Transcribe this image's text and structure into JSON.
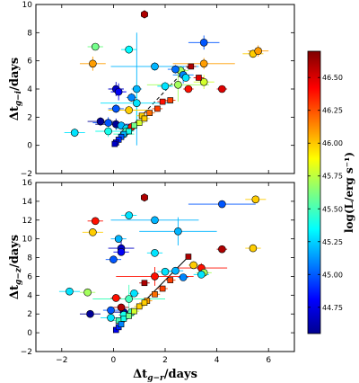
{
  "chart_data": {
    "type": "scatter",
    "shared_xlabel": {
      "main": "Δt",
      "sub": "g−r",
      "rest": "/days"
    },
    "xlim": [
      -3,
      7
    ],
    "xticks": [
      -2,
      0,
      2,
      4,
      6
    ],
    "colorbar": {
      "label": "log(L/erg s⁻¹)",
      "range": [
        44.55,
        46.7
      ],
      "ticks": [
        44.75,
        45.0,
        45.25,
        45.5,
        45.75,
        46.0,
        46.25,
        46.5
      ],
      "tick_labels": [
        "44.75",
        "45.00",
        "45.25",
        "45.50",
        "45.75",
        "46.00",
        "46.25",
        "46.50"
      ],
      "colormap": "jet"
    },
    "panels": [
      {
        "name": "top",
        "ylabel": {
          "main": "Δt",
          "sub": "g−i",
          "rest": "/days"
        },
        "ylim": [
          -2,
          10
        ],
        "yticks": [
          -2,
          0,
          2,
          4,
          6,
          8,
          10
        ],
        "line": {
          "x": [
            0,
            2.9
          ],
          "y": [
            0,
            5.6
          ],
          "style": "dashed"
        },
        "series": [
          {
            "x": 1.2,
            "y": 9.3,
            "xerr": 0,
            "yerr": 0,
            "c": 46.6,
            "m": "h"
          },
          {
            "x": -0.7,
            "y": 7.0,
            "xerr": 0.3,
            "yerr": 0.2,
            "c": 45.6,
            "m": "o"
          },
          {
            "x": 0.6,
            "y": 6.8,
            "xerr": 0.3,
            "yerr": 0.3,
            "c": 45.35,
            "m": "o"
          },
          {
            "x": 3.5,
            "y": 7.3,
            "xerr": 0.6,
            "yerr": 0.5,
            "c": 45.0,
            "m": "o"
          },
          {
            "x": -0.8,
            "y": 5.8,
            "xerr": 0.5,
            "yerr": 0.5,
            "c": 46.1,
            "m": "o"
          },
          {
            "x": 1.6,
            "y": 5.6,
            "xerr": 1.7,
            "yerr": 0.3,
            "c": 45.2,
            "m": "o"
          },
          {
            "x": 2.6,
            "y": 5.3,
            "xerr": 0.3,
            "yerr": 0.3,
            "c": 45.7,
            "m": "o"
          },
          {
            "x": 2.7,
            "y": 5.0,
            "xerr": 0.4,
            "yerr": 0.6,
            "c": 45.1,
            "m": "o"
          },
          {
            "x": 2.4,
            "y": 5.4,
            "xerr": 0.3,
            "yerr": 0.3,
            "c": 45.05,
            "m": "o"
          },
          {
            "x": 3.0,
            "y": 5.6,
            "xerr": 0.2,
            "yerr": 0.2,
            "c": 46.6,
            "m": "s"
          },
          {
            "x": 2.8,
            "y": 4.8,
            "xerr": 0.2,
            "yerr": 0.2,
            "c": 45.3,
            "m": "o"
          },
          {
            "x": 3.5,
            "y": 5.8,
            "xerr": 1.2,
            "yerr": 0.4,
            "c": 46.1,
            "m": "o"
          },
          {
            "x": 5.4,
            "y": 6.5,
            "xerr": 0.4,
            "yerr": 0.3,
            "c": 46.0,
            "m": "o"
          },
          {
            "x": 5.6,
            "y": 6.7,
            "xerr": 0.4,
            "yerr": 0.4,
            "c": 46.1,
            "m": "o"
          },
          {
            "x": 3.5,
            "y": 4.5,
            "xerr": 0.4,
            "yerr": 0.5,
            "c": 45.8,
            "m": "o"
          },
          {
            "x": 3.3,
            "y": 4.8,
            "xerr": 0.2,
            "yerr": 0.2,
            "c": 46.5,
            "m": "s"
          },
          {
            "x": 2.5,
            "y": 4.3,
            "xerr": 1.2,
            "yerr": 1.2,
            "c": 45.7,
            "m": "o"
          },
          {
            "x": 2.0,
            "y": 4.2,
            "xerr": 0.3,
            "yerr": 0.3,
            "c": 45.3,
            "m": "o"
          },
          {
            "x": 2.9,
            "y": 4.0,
            "xerr": 0.2,
            "yerr": 0.2,
            "c": 46.4,
            "m": "o"
          },
          {
            "x": 4.2,
            "y": 4.0,
            "xerr": 0.2,
            "yerr": 0.2,
            "c": 46.5,
            "m": "o"
          },
          {
            "x": 0.1,
            "y": 4.0,
            "xerr": 0.3,
            "yerr": 0.5,
            "c": 44.7,
            "m": "o"
          },
          {
            "x": 0.2,
            "y": 3.8,
            "xerr": 0.3,
            "yerr": 0.6,
            "c": 44.8,
            "m": "o"
          },
          {
            "x": 0.9,
            "y": 4.0,
            "xerr": 0.2,
            "yerr": 4.0,
            "c": 45.2,
            "m": "o"
          },
          {
            "x": 0.7,
            "y": 3.4,
            "xerr": 0.2,
            "yerr": 0.3,
            "c": 45.1,
            "m": "o"
          },
          {
            "x": 0.9,
            "y": 3.0,
            "xerr": 1.4,
            "yerr": 1.5,
            "c": 45.3,
            "m": "o"
          },
          {
            "x": 0.1,
            "y": 2.6,
            "xerr": 0.3,
            "yerr": 0.3,
            "c": 45.0,
            "m": "o"
          },
          {
            "x": 0.6,
            "y": 2.5,
            "xerr": 0.8,
            "yerr": 0.3,
            "c": 46.0,
            "m": "o"
          },
          {
            "x": -0.5,
            "y": 1.7,
            "xerr": 0.5,
            "yerr": 0.3,
            "c": 44.6,
            "m": "o"
          },
          {
            "x": -0.2,
            "y": 1.6,
            "xerr": 0.6,
            "yerr": 0.4,
            "c": 45.0,
            "m": "o"
          },
          {
            "x": 0.1,
            "y": 1.5,
            "xerr": 0.8,
            "yerr": 0.4,
            "c": 44.6,
            "m": "o"
          },
          {
            "x": 0.3,
            "y": 1.4,
            "xerr": 0.3,
            "yerr": 0.3,
            "c": 45.2,
            "m": "o"
          },
          {
            "x": 0.5,
            "y": 1.2,
            "xerr": 0.4,
            "yerr": 0.3,
            "c": 45.3,
            "m": "o"
          },
          {
            "x": 0.7,
            "y": 1.3,
            "xerr": 0.2,
            "yerr": 0.2,
            "c": 46.4,
            "m": "o"
          },
          {
            "x": -0.2,
            "y": 1.0,
            "xerr": 0.5,
            "yerr": 0.4,
            "c": 45.4,
            "m": "o"
          },
          {
            "x": 0.4,
            "y": 0.8,
            "xerr": 0.4,
            "yerr": 0.3,
            "c": 45.5,
            "m": "o"
          },
          {
            "x": -1.5,
            "y": 0.9,
            "xerr": 0.4,
            "yerr": 0.3,
            "c": 45.3,
            "m": "o"
          },
          {
            "x": 0.5,
            "y": 1.0,
            "xerr": 0.2,
            "yerr": 0.2,
            "c": 45.5,
            "m": "o"
          },
          {
            "x": 1.1,
            "y": 2.1,
            "xerr": 0.2,
            "yerr": 0.2,
            "c": 46.0,
            "m": "s"
          },
          {
            "x": 1.4,
            "y": 2.3,
            "xerr": 0.2,
            "yerr": 0.2,
            "c": 46.2,
            "m": "s"
          },
          {
            "x": 1.7,
            "y": 2.6,
            "xerr": 0.2,
            "yerr": 0.2,
            "c": 46.3,
            "m": "s"
          },
          {
            "x": 1.9,
            "y": 3.1,
            "xerr": 0.2,
            "yerr": 0.2,
            "c": 46.4,
            "m": "s"
          },
          {
            "x": 1.0,
            "y": 1.6,
            "xerr": 0.2,
            "yerr": 0.2,
            "c": 45.8,
            "m": "s"
          },
          {
            "x": 0.8,
            "y": 1.4,
            "xerr": 0.2,
            "yerr": 0.2,
            "c": 45.6,
            "m": "s"
          },
          {
            "x": 0.6,
            "y": 1.0,
            "xerr": 0.2,
            "yerr": 0.2,
            "c": 45.4,
            "m": "s"
          },
          {
            "x": 0.4,
            "y": 0.8,
            "xerr": 0.2,
            "yerr": 0.2,
            "c": 45.2,
            "m": "s"
          },
          {
            "x": 0.3,
            "y": 0.6,
            "xerr": 0.1,
            "yerr": 0.1,
            "c": 45.0,
            "m": "s"
          },
          {
            "x": 0.2,
            "y": 0.4,
            "xerr": 0.1,
            "yerr": 0.1,
            "c": 44.9,
            "m": "s"
          },
          {
            "x": 0.1,
            "y": 0.2,
            "xerr": 0.1,
            "yerr": 0.1,
            "c": 44.8,
            "m": "s"
          },
          {
            "x": 0.05,
            "y": 0.1,
            "xerr": 0.1,
            "yerr": 0.1,
            "c": 44.7,
            "m": "s"
          },
          {
            "x": 1.2,
            "y": 1.9,
            "xerr": 0.2,
            "yerr": 0.2,
            "c": 46.0,
            "m": "s"
          },
          {
            "x": 2.2,
            "y": 3.2,
            "xerr": 0.2,
            "yerr": 0.2,
            "c": 46.3,
            "m": "s"
          }
        ]
      },
      {
        "name": "bottom",
        "ylabel": {
          "main": "Δt",
          "sub": "g−z",
          "rest": "/days"
        },
        "ylim": [
          -2,
          16
        ],
        "yticks": [
          -2,
          0,
          2,
          4,
          6,
          8,
          10,
          12,
          14,
          16
        ],
        "line": {
          "x": [
            0,
            2.9
          ],
          "y": [
            0,
            8.1
          ],
          "style": "solid"
        },
        "series": [
          {
            "x": 1.2,
            "y": 14.4,
            "xerr": 0,
            "yerr": 0,
            "c": 46.6,
            "m": "h"
          },
          {
            "x": 5.5,
            "y": 14.2,
            "xerr": 0.4,
            "yerr": 0.3,
            "c": 46.0,
            "m": "o"
          },
          {
            "x": -0.7,
            "y": 11.9,
            "xerr": 0.3,
            "yerr": 0.2,
            "c": 46.4,
            "m": "o"
          },
          {
            "x": 1.6,
            "y": 12.0,
            "xerr": 1.7,
            "yerr": 0.3,
            "c": 45.2,
            "m": "o"
          },
          {
            "x": 0.6,
            "y": 12.5,
            "xerr": 0.3,
            "yerr": 0.3,
            "c": 45.3,
            "m": "o"
          },
          {
            "x": 4.2,
            "y": 13.7,
            "xerr": 1.3,
            "yerr": 0.4,
            "c": 45.0,
            "m": "o"
          },
          {
            "x": -0.8,
            "y": 10.7,
            "xerr": 0.4,
            "yerr": 0.4,
            "c": 46.0,
            "m": "o"
          },
          {
            "x": 2.5,
            "y": 10.8,
            "xerr": 1.5,
            "yerr": 1.5,
            "c": 45.2,
            "m": "o"
          },
          {
            "x": 0.2,
            "y": 10.0,
            "xerr": 0.3,
            "yerr": 0.3,
            "c": 45.2,
            "m": "o"
          },
          {
            "x": 0.3,
            "y": 9.0,
            "xerr": 0.5,
            "yerr": 0.8,
            "c": 44.7,
            "m": "o"
          },
          {
            "x": 0.3,
            "y": 8.6,
            "xerr": 0.3,
            "yerr": 0.3,
            "c": 44.8,
            "m": "o"
          },
          {
            "x": 0.0,
            "y": 7.8,
            "xerr": 0.3,
            "yerr": 0.3,
            "c": 45.0,
            "m": "o"
          },
          {
            "x": 1.6,
            "y": 8.5,
            "xerr": 0.3,
            "yerr": 0.3,
            "c": 45.3,
            "m": "o"
          },
          {
            "x": 4.2,
            "y": 8.9,
            "xerr": 0.2,
            "yerr": 0.2,
            "c": 46.6,
            "m": "o"
          },
          {
            "x": 5.4,
            "y": 9.0,
            "xerr": 0.3,
            "yerr": 0.3,
            "c": 46.0,
            "m": "o"
          },
          {
            "x": 2.9,
            "y": 8.1,
            "xerr": 0.1,
            "yerr": 0.1,
            "c": 46.6,
            "m": "s"
          },
          {
            "x": 3.1,
            "y": 7.2,
            "xerr": 0.2,
            "yerr": 0.2,
            "c": 46.0,
            "m": "o"
          },
          {
            "x": 3.4,
            "y": 6.9,
            "xerr": 1.0,
            "yerr": 0.5,
            "c": 46.4,
            "m": "o"
          },
          {
            "x": 2.4,
            "y": 6.6,
            "xerr": 0.3,
            "yerr": 0.3,
            "c": 45.2,
            "m": "o"
          },
          {
            "x": 3.5,
            "y": 6.4,
            "xerr": 0.3,
            "yerr": 0.3,
            "c": 45.7,
            "m": "o"
          },
          {
            "x": 3.4,
            "y": 6.2,
            "xerr": 0.3,
            "yerr": 0.3,
            "c": 45.3,
            "m": "o"
          },
          {
            "x": 2.0,
            "y": 6.5,
            "xerr": 0.3,
            "yerr": 0.3,
            "c": 45.3,
            "m": "o"
          },
          {
            "x": 2.7,
            "y": 5.9,
            "xerr": 0.2,
            "yerr": 0.2,
            "c": 45.1,
            "m": "o"
          },
          {
            "x": 1.6,
            "y": 6.0,
            "xerr": 1.5,
            "yerr": 1.0,
            "c": 46.4,
            "m": "o"
          },
          {
            "x": 1.2,
            "y": 5.3,
            "xerr": 0.2,
            "yerr": 0.2,
            "c": 46.6,
            "m": "s"
          },
          {
            "x": -1.7,
            "y": 4.4,
            "xerr": 0.4,
            "yerr": 0.3,
            "c": 45.3,
            "m": "o"
          },
          {
            "x": -1.0,
            "y": 4.3,
            "xerr": 0.3,
            "yerr": 0.3,
            "c": 45.7,
            "m": "o"
          },
          {
            "x": 0.8,
            "y": 4.2,
            "xerr": 0.2,
            "yerr": 0.2,
            "c": 45.3,
            "m": "o"
          },
          {
            "x": 0.6,
            "y": 3.6,
            "xerr": 1.4,
            "yerr": 1.5,
            "c": 45.5,
            "m": "o"
          },
          {
            "x": 0.1,
            "y": 3.7,
            "xerr": 0.2,
            "yerr": 0.2,
            "c": 46.4,
            "m": "o"
          },
          {
            "x": -0.9,
            "y": 2.0,
            "xerr": 0.4,
            "yerr": 0.3,
            "c": 44.6,
            "m": "o"
          },
          {
            "x": 0.4,
            "y": 2.2,
            "xerr": 0.4,
            "yerr": 0.4,
            "c": 44.6,
            "m": "o"
          },
          {
            "x": -0.1,
            "y": 2.4,
            "xerr": 0.3,
            "yerr": 0.3,
            "c": 45.0,
            "m": "o"
          },
          {
            "x": 0.3,
            "y": 2.7,
            "xerr": 0.3,
            "yerr": 0.3,
            "c": 46.6,
            "m": "o"
          },
          {
            "x": -0.1,
            "y": 1.6,
            "xerr": 0.4,
            "yerr": 0.3,
            "c": 45.3,
            "m": "o"
          },
          {
            "x": 0.4,
            "y": 1.9,
            "xerr": 0.2,
            "yerr": 0.2,
            "c": 45.4,
            "m": "o"
          },
          {
            "x": 0.7,
            "y": 2.2,
            "xerr": 0.2,
            "yerr": 0.2,
            "c": 45.5,
            "m": "o"
          },
          {
            "x": 0.2,
            "y": 1.3,
            "xerr": 0.2,
            "yerr": 0.2,
            "c": 45.5,
            "m": "s"
          },
          {
            "x": 0.4,
            "y": 1.5,
            "xerr": 0.2,
            "yerr": 0.2,
            "c": 45.4,
            "m": "s"
          },
          {
            "x": 0.6,
            "y": 1.8,
            "xerr": 0.2,
            "yerr": 0.2,
            "c": 45.6,
            "m": "s"
          },
          {
            "x": 0.8,
            "y": 2.3,
            "xerr": 0.2,
            "yerr": 0.2,
            "c": 45.8,
            "m": "s"
          },
          {
            "x": 1.0,
            "y": 2.8,
            "xerr": 0.2,
            "yerr": 0.2,
            "c": 46.0,
            "m": "s"
          },
          {
            "x": 1.3,
            "y": 3.4,
            "xerr": 0.2,
            "yerr": 0.2,
            "c": 46.1,
            "m": "s"
          },
          {
            "x": 1.6,
            "y": 4.1,
            "xerr": 0.2,
            "yerr": 0.2,
            "c": 46.2,
            "m": "s"
          },
          {
            "x": 1.9,
            "y": 4.7,
            "xerr": 0.2,
            "yerr": 0.2,
            "c": 46.3,
            "m": "s"
          },
          {
            "x": 2.2,
            "y": 5.6,
            "xerr": 0.2,
            "yerr": 0.2,
            "c": 46.3,
            "m": "s"
          },
          {
            "x": 0.1,
            "y": 0.3,
            "xerr": 0.1,
            "yerr": 0.1,
            "c": 44.8,
            "m": "s"
          },
          {
            "x": 0.2,
            "y": 0.6,
            "xerr": 0.1,
            "yerr": 0.1,
            "c": 44.9,
            "m": "s"
          },
          {
            "x": 0.3,
            "y": 0.9,
            "xerr": 0.1,
            "yerr": 0.1,
            "c": 45.1,
            "m": "s"
          },
          {
            "x": 1.2,
            "y": 3.2,
            "xerr": 0.2,
            "yerr": 0.2,
            "c": 46.0,
            "m": "s"
          }
        ]
      }
    ]
  }
}
